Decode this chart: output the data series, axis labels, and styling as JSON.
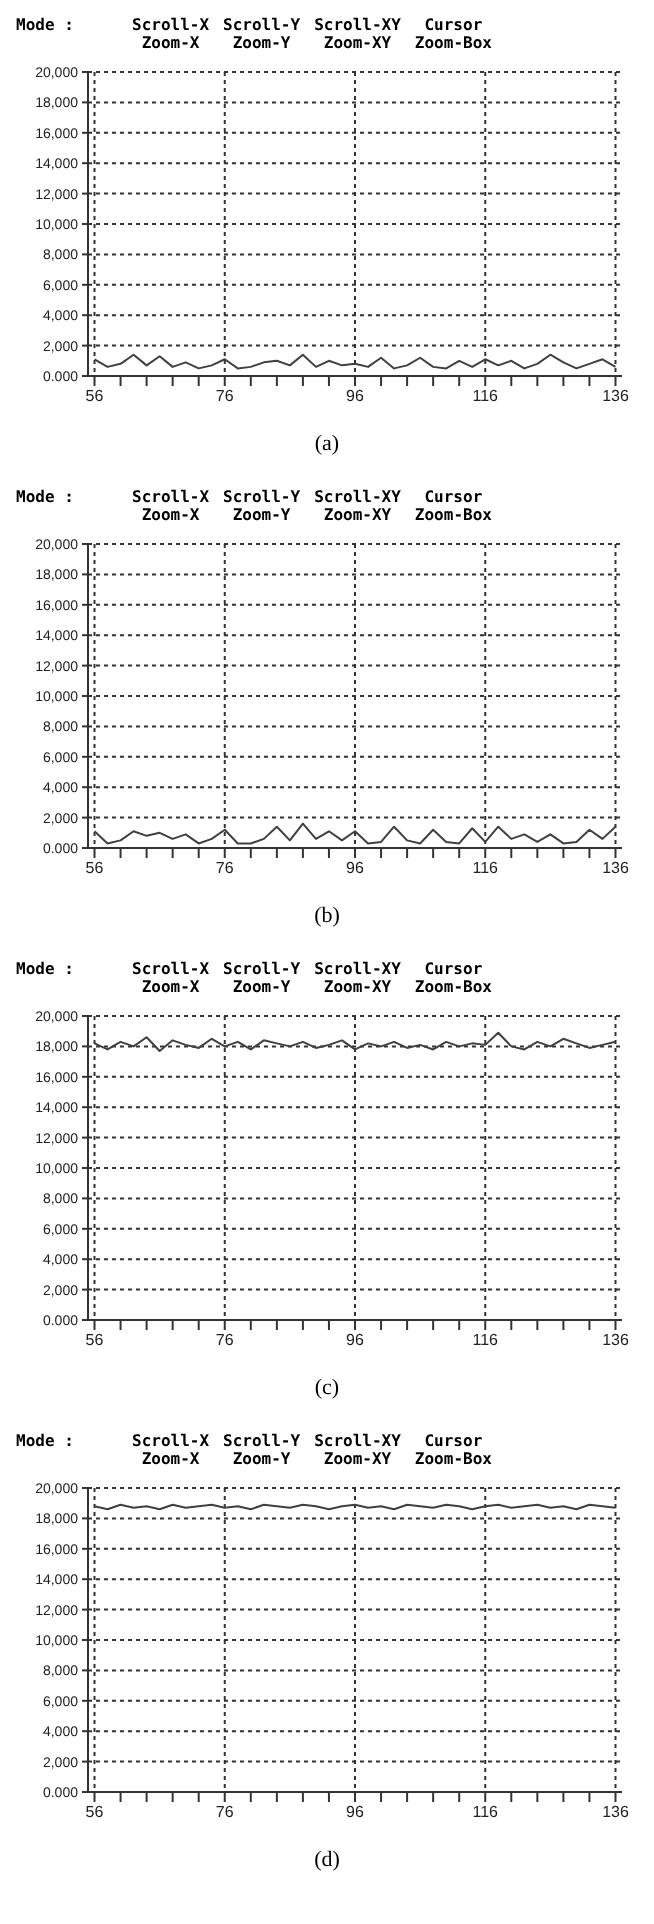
{
  "chart_data": [
    {
      "type": "line",
      "color": "#404040",
      "x": [
        56,
        58,
        60,
        62,
        64,
        66,
        68,
        70,
        72,
        74,
        76,
        78,
        80,
        82,
        84,
        86,
        88,
        90,
        92,
        94,
        96,
        98,
        100,
        102,
        104,
        106,
        108,
        110,
        112,
        114,
        116,
        118,
        120,
        122,
        124,
        126,
        128,
        130,
        132,
        134,
        136
      ],
      "values": [
        1100,
        600,
        800,
        1400,
        700,
        1300,
        600,
        900,
        500,
        700,
        1100,
        500,
        600,
        900,
        1000,
        700,
        1400,
        600,
        1000,
        700,
        800,
        600,
        1200,
        500,
        700,
        1200,
        600,
        500,
        1000,
        600,
        1100,
        700,
        1000,
        500,
        800,
        1400,
        900,
        500,
        800,
        1100,
        600
      ],
      "xlim": [
        55,
        137
      ],
      "ylim": [
        0,
        20000
      ],
      "xticks": [
        56,
        {
          "value": 60,
          "label": null
        },
        {
          "value": 64,
          "label": null
        },
        {
          "value": 68,
          "label": null
        },
        {
          "value": 72,
          "label": null
        },
        76,
        {
          "value": 80,
          "label": null
        },
        {
          "value": 84,
          "label": null
        },
        {
          "value": 88,
          "label": null
        },
        {
          "value": 92,
          "label": null
        },
        96,
        {
          "value": 100,
          "label": null
        },
        {
          "value": 104,
          "label": null
        },
        {
          "value": 108,
          "label": null
        },
        {
          "value": 112,
          "label": null
        },
        116,
        {
          "value": 120,
          "label": null
        },
        {
          "value": 124,
          "label": null
        },
        {
          "value": 128,
          "label": null
        },
        {
          "value": 132,
          "label": null
        },
        136
      ],
      "yticks": [
        {
          "value": 0,
          "label": "0.000"
        },
        {
          "value": 2000,
          "label": "2,000"
        },
        {
          "value": 4000,
          "label": "4,000"
        },
        {
          "value": 6000,
          "label": "6,000"
        },
        {
          "value": 8000,
          "label": "8,000"
        },
        {
          "value": 10000,
          "label": "10,000"
        },
        {
          "value": 12000,
          "label": "12,000"
        },
        {
          "value": 14000,
          "label": "14,000"
        },
        {
          "value": 16000,
          "label": "16,000"
        },
        {
          "value": 18000,
          "label": "18,000"
        },
        {
          "value": 20000,
          "label": "20,000"
        }
      ],
      "grid": true,
      "marker": "none",
      "annotations": [
        "Mode :",
        "Scroll-X",
        "Zoom-X",
        "Scroll-Y",
        "Zoom-Y",
        "Scroll-XY",
        "Zoom-XY",
        "Cursor",
        "Zoom-Box",
        "(a)"
      ]
    },
    {
      "type": "line",
      "color": "#404040",
      "x": [
        56,
        58,
        60,
        62,
        64,
        66,
        68,
        70,
        72,
        74,
        76,
        78,
        80,
        82,
        84,
        86,
        88,
        90,
        92,
        94,
        96,
        98,
        100,
        102,
        104,
        106,
        108,
        110,
        112,
        114,
        116,
        118,
        120,
        122,
        124,
        126,
        128,
        130,
        132,
        134,
        136
      ],
      "values": [
        1100,
        300,
        500,
        1100,
        800,
        1000,
        600,
        900,
        300,
        600,
        1200,
        300,
        300,
        600,
        1400,
        500,
        1600,
        600,
        1100,
        500,
        1100,
        300,
        400,
        1400,
        500,
        300,
        1200,
        400,
        300,
        1300,
        400,
        1400,
        600,
        900,
        400,
        900,
        300,
        400,
        1200,
        600,
        1400
      ],
      "xlim": [
        55,
        137
      ],
      "ylim": [
        0,
        20000
      ],
      "xticks": [
        56,
        {
          "value": 60,
          "label": null
        },
        {
          "value": 64,
          "label": null
        },
        {
          "value": 68,
          "label": null
        },
        {
          "value": 72,
          "label": null
        },
        76,
        {
          "value": 80,
          "label": null
        },
        {
          "value": 84,
          "label": null
        },
        {
          "value": 88,
          "label": null
        },
        {
          "value": 92,
          "label": null
        },
        96,
        {
          "value": 100,
          "label": null
        },
        {
          "value": 104,
          "label": null
        },
        {
          "value": 108,
          "label": null
        },
        {
          "value": 112,
          "label": null
        },
        116,
        {
          "value": 120,
          "label": null
        },
        {
          "value": 124,
          "label": null
        },
        {
          "value": 128,
          "label": null
        },
        {
          "value": 132,
          "label": null
        },
        136
      ],
      "yticks": [
        {
          "value": 0,
          "label": "0.000"
        },
        {
          "value": 2000,
          "label": "2,000"
        },
        {
          "value": 4000,
          "label": "4,000"
        },
        {
          "value": 6000,
          "label": "6,000"
        },
        {
          "value": 8000,
          "label": "8,000"
        },
        {
          "value": 10000,
          "label": "10,000"
        },
        {
          "value": 12000,
          "label": "12,000"
        },
        {
          "value": 14000,
          "label": "14,000"
        },
        {
          "value": 16000,
          "label": "16,000"
        },
        {
          "value": 18000,
          "label": "18,000"
        },
        {
          "value": 20000,
          "label": "20,000"
        }
      ],
      "grid": true,
      "marker": "none",
      "annotations": [
        "Mode :",
        "Scroll-X",
        "Zoom-X",
        "Scroll-Y",
        "Zoom-Y",
        "Scroll-XY",
        "Zoom-XY",
        "Cursor",
        "Zoom-Box",
        "(b)"
      ]
    },
    {
      "type": "line",
      "color": "#404040",
      "x": [
        56,
        58,
        60,
        62,
        64,
        66,
        68,
        70,
        72,
        74,
        76,
        78,
        80,
        82,
        84,
        86,
        88,
        90,
        92,
        94,
        96,
        98,
        100,
        102,
        104,
        106,
        108,
        110,
        112,
        114,
        116,
        118,
        120,
        122,
        124,
        126,
        128,
        130,
        132,
        134,
        136
      ],
      "values": [
        18200,
        17800,
        18300,
        18000,
        18600,
        17700,
        18400,
        18100,
        17900,
        18500,
        18000,
        18300,
        17800,
        18400,
        18200,
        18000,
        18300,
        17900,
        18100,
        18400,
        17800,
        18200,
        18000,
        18300,
        17900,
        18100,
        17800,
        18300,
        18000,
        18200,
        18100,
        18900,
        18000,
        17800,
        18300,
        18000,
        18500,
        18200,
        17900,
        18100,
        18300
      ],
      "xlim": [
        55,
        137
      ],
      "ylim": [
        0,
        20000
      ],
      "xticks": [
        56,
        {
          "value": 60,
          "label": null
        },
        {
          "value": 64,
          "label": null
        },
        {
          "value": 68,
          "label": null
        },
        {
          "value": 72,
          "label": null
        },
        76,
        {
          "value": 80,
          "label": null
        },
        {
          "value": 84,
          "label": null
        },
        {
          "value": 88,
          "label": null
        },
        {
          "value": 92,
          "label": null
        },
        96,
        {
          "value": 100,
          "label": null
        },
        {
          "value": 104,
          "label": null
        },
        {
          "value": 108,
          "label": null
        },
        {
          "value": 112,
          "label": null
        },
        116,
        {
          "value": 120,
          "label": null
        },
        {
          "value": 124,
          "label": null
        },
        {
          "value": 128,
          "label": null
        },
        {
          "value": 132,
          "label": null
        },
        136
      ],
      "yticks": [
        {
          "value": 0,
          "label": "0.000"
        },
        {
          "value": 2000,
          "label": "2,000"
        },
        {
          "value": 4000,
          "label": "4,000"
        },
        {
          "value": 6000,
          "label": "6,000"
        },
        {
          "value": 8000,
          "label": "8,000"
        },
        {
          "value": 10000,
          "label": "10,000"
        },
        {
          "value": 12000,
          "label": "12,000"
        },
        {
          "value": 14000,
          "label": "14,000"
        },
        {
          "value": 16000,
          "label": "16,000"
        },
        {
          "value": 18000,
          "label": "18,000"
        },
        {
          "value": 20000,
          "label": "20,000"
        }
      ],
      "grid": true,
      "marker": "none",
      "annotations": [
        "Mode :",
        "Scroll-X",
        "Zoom-X",
        "Scroll-Y",
        "Zoom-Y",
        "Scroll-XY",
        "Zoom-XY",
        "Cursor",
        "Zoom-Box",
        "(c)"
      ]
    },
    {
      "type": "line",
      "color": "#404040",
      "x": [
        56,
        58,
        60,
        62,
        64,
        66,
        68,
        70,
        72,
        74,
        76,
        78,
        80,
        82,
        84,
        86,
        88,
        90,
        92,
        94,
        96,
        98,
        100,
        102,
        104,
        106,
        108,
        110,
        112,
        114,
        116,
        118,
        120,
        122,
        124,
        126,
        128,
        130,
        132,
        134,
        136
      ],
      "values": [
        18800,
        18600,
        18900,
        18700,
        18800,
        18600,
        18900,
        18700,
        18800,
        18900,
        18700,
        18800,
        18600,
        18900,
        18800,
        18700,
        18900,
        18800,
        18600,
        18800,
        18900,
        18700,
        18800,
        18600,
        18900,
        18800,
        18700,
        18900,
        18800,
        18600,
        18800,
        18900,
        18700,
        18800,
        18900,
        18700,
        18800,
        18600,
        18900,
        18800,
        18700
      ],
      "xlim": [
        55,
        137
      ],
      "ylim": [
        0,
        20000
      ],
      "xticks": [
        56,
        {
          "value": 60,
          "label": null
        },
        {
          "value": 64,
          "label": null
        },
        {
          "value": 68,
          "label": null
        },
        {
          "value": 72,
          "label": null
        },
        76,
        {
          "value": 80,
          "label": null
        },
        {
          "value": 84,
          "label": null
        },
        {
          "value": 88,
          "label": null
        },
        {
          "value": 92,
          "label": null
        },
        96,
        {
          "value": 100,
          "label": null
        },
        {
          "value": 104,
          "label": null
        },
        {
          "value": 108,
          "label": null
        },
        {
          "value": 112,
          "label": null
        },
        116,
        {
          "value": 120,
          "label": null
        },
        {
          "value": 124,
          "label": null
        },
        {
          "value": 128,
          "label": null
        },
        {
          "value": 132,
          "label": null
        },
        136
      ],
      "yticks": [
        {
          "value": 0,
          "label": "0.000"
        },
        {
          "value": 2000,
          "label": "2,000"
        },
        {
          "value": 4000,
          "label": "4,000"
        },
        {
          "value": 6000,
          "label": "6,000"
        },
        {
          "value": 8000,
          "label": "8,000"
        },
        {
          "value": 10000,
          "label": "10,000"
        },
        {
          "value": 12000,
          "label": "12,000"
        },
        {
          "value": 14000,
          "label": "14,000"
        },
        {
          "value": 16000,
          "label": "16,000"
        },
        {
          "value": 18000,
          "label": "18,000"
        },
        {
          "value": 20000,
          "label": "20,000"
        }
      ],
      "grid": true,
      "marker": "none",
      "annotations": [
        "Mode :",
        "Scroll-X",
        "Zoom-X",
        "Scroll-Y",
        "Zoom-Y",
        "Scroll-XY",
        "Zoom-XY",
        "Cursor",
        "Zoom-Box",
        "(d)"
      ]
    }
  ]
}
